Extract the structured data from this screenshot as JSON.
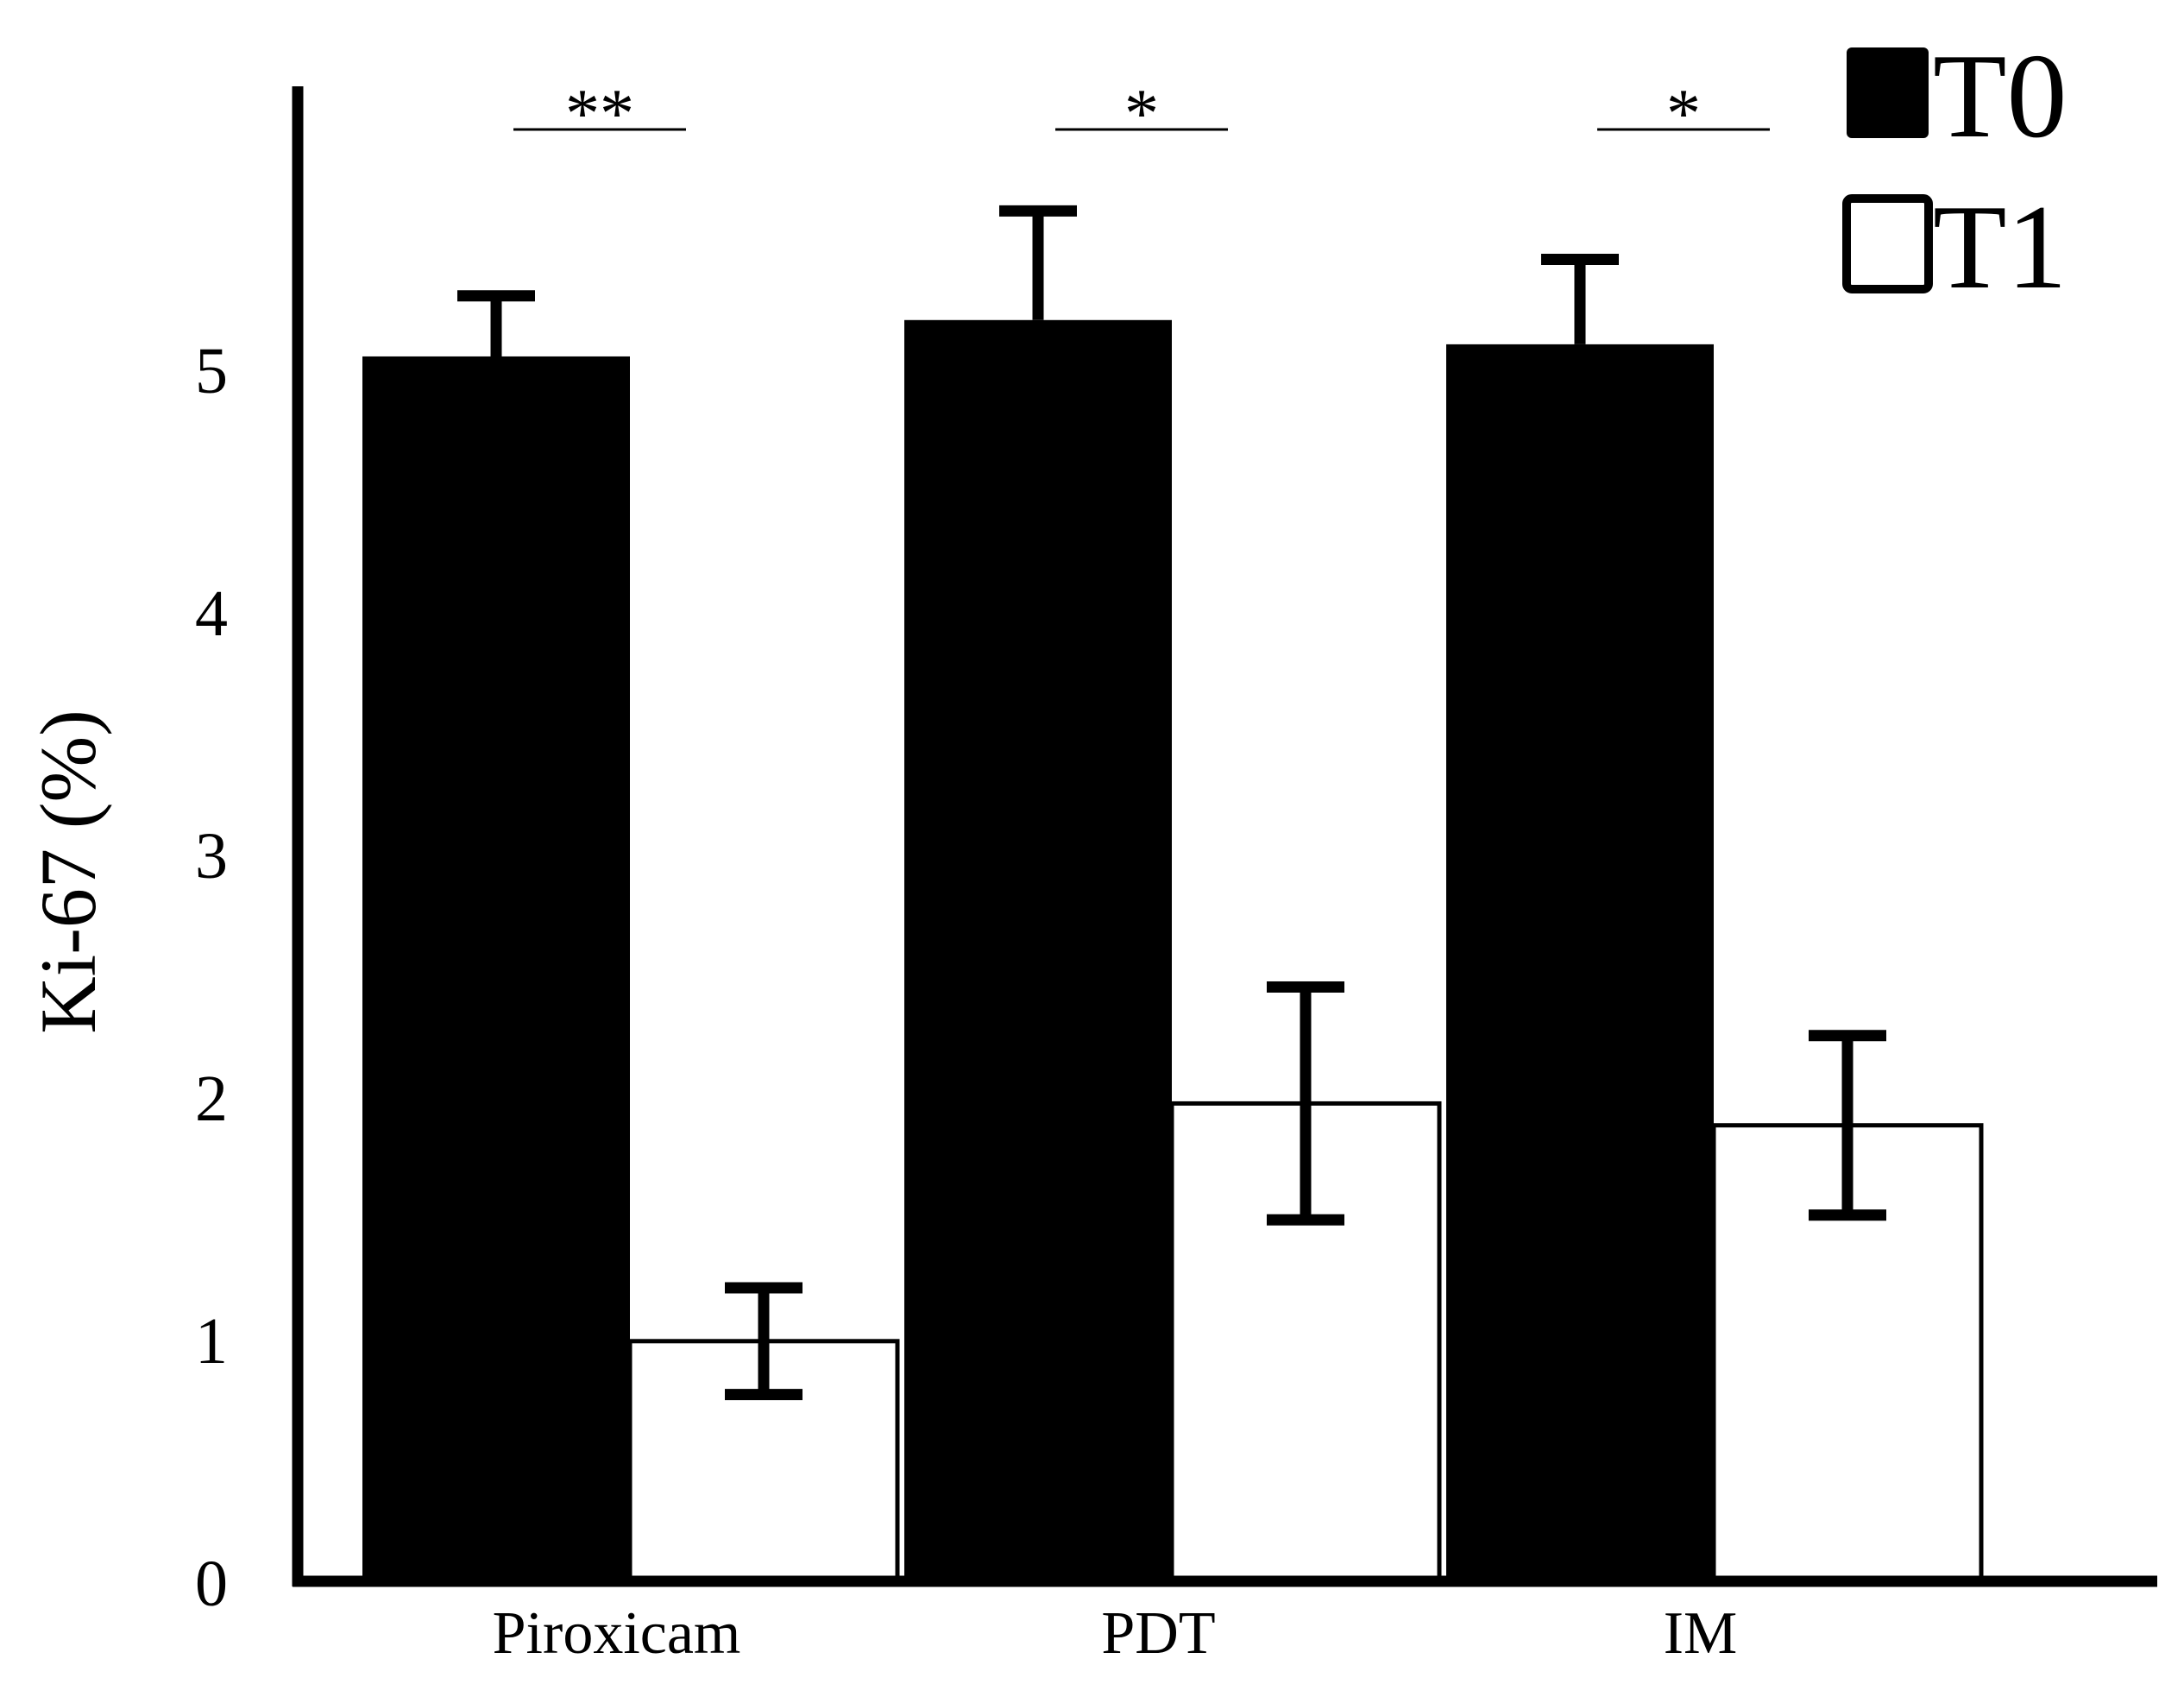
{
  "chart_data": {
    "type": "bar",
    "ylabel": "Ki-67 (%)",
    "xlabel": "",
    "ylim": [
      0,
      5.9
    ],
    "yticks": [
      0,
      1,
      2,
      3,
      4,
      5
    ],
    "categories": [
      "Piroxicam",
      "PDT",
      "IM"
    ],
    "series": [
      {
        "name": "T0",
        "color": "#000000",
        "values": [
          5.05,
          5.2,
          5.1
        ],
        "errors": [
          0.25,
          0.45,
          0.35
        ]
      },
      {
        "name": "T1",
        "color": "#ffffff",
        "values": [
          0.99,
          1.97,
          1.88
        ],
        "errors": [
          0.22,
          0.48,
          0.37
        ]
      }
    ],
    "significance": [
      "**",
      "*",
      "*"
    ],
    "legend_position": "top-right",
    "grid": false
  }
}
